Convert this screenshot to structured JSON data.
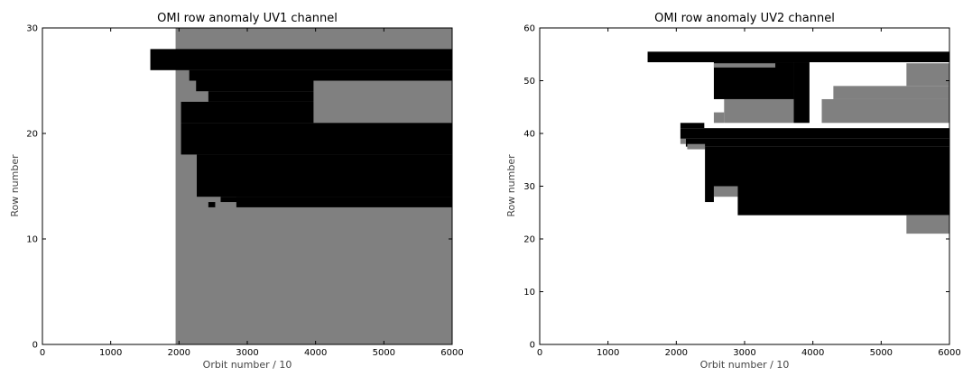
{
  "chart_data": [
    {
      "type": "heatmap",
      "title": "OMI row anomaly UV1 channel",
      "xlabel": "Orbit number / 10",
      "ylabel": "Row number",
      "xlim": [
        0,
        6000
      ],
      "ylim": [
        0,
        30
      ],
      "xticks": [
        0,
        1000,
        2000,
        3000,
        4000,
        5000,
        6000
      ],
      "yticks": [
        0,
        10,
        20,
        30
      ],
      "grid": false,
      "legend": "none",
      "colors": {
        "level_1": "#808080",
        "level_2": "#000000",
        "background": "#ffffff"
      },
      "regions": [
        {
          "level": 1,
          "x": [
            1950,
            6000
          ],
          "y": [
            0,
            30
          ]
        },
        {
          "level": 2,
          "x": [
            1580,
            6000
          ],
          "y": [
            26,
            28
          ]
        },
        {
          "level": 2,
          "x": [
            2150,
            6000
          ],
          "y": [
            25,
            26
          ]
        },
        {
          "level": 2,
          "x": [
            2250,
            6000
          ],
          "y": [
            24,
            25
          ]
        },
        {
          "level": 2,
          "x": [
            2430,
            6000
          ],
          "y": [
            23,
            24
          ]
        },
        {
          "level": 2,
          "x": [
            2030,
            6000
          ],
          "y": [
            21,
            23
          ]
        },
        {
          "level": 2,
          "x": [
            2030,
            6000
          ],
          "y": [
            18,
            21
          ]
        },
        {
          "level": 2,
          "x": [
            2260,
            6000
          ],
          "y": [
            14,
            18
          ]
        },
        {
          "level": 2,
          "x": [
            2610,
            6000
          ],
          "y": [
            13.5,
            14
          ]
        },
        {
          "level": 2,
          "x": [
            2430,
            2530
          ],
          "y": [
            13,
            13.5
          ]
        },
        {
          "level": 2,
          "x": [
            2840,
            6000
          ],
          "y": [
            13,
            14
          ]
        },
        {
          "level": 1,
          "x": [
            3970,
            6000
          ],
          "y": [
            21,
            25
          ]
        }
      ]
    },
    {
      "type": "heatmap",
      "title": "OMI row anomaly UV2 channel",
      "xlabel": "Orbit number / 10",
      "ylabel": "Row number",
      "xlim": [
        0,
        6000
      ],
      "ylim": [
        0,
        60
      ],
      "xticks": [
        0,
        1000,
        2000,
        3000,
        4000,
        5000,
        6000
      ],
      "yticks": [
        0,
        10,
        20,
        30,
        40,
        50,
        60
      ],
      "grid": false,
      "legend": "none",
      "colors": {
        "level_1": "#808080",
        "level_2": "#000000",
        "background": "#ffffff"
      },
      "regions": [
        {
          "level": 2,
          "x": [
            1580,
            6000
          ],
          "y": [
            53.5,
            55.5
          ]
        },
        {
          "level": 2,
          "x": [
            2550,
            3720
          ],
          "y": [
            46.5,
            53.5
          ]
        },
        {
          "level": 2,
          "x": [
            3720,
            3950
          ],
          "y": [
            42,
            53.5
          ]
        },
        {
          "level": 1,
          "x": [
            2550,
            3450
          ],
          "y": [
            52.5,
            53.3
          ]
        },
        {
          "level": 1,
          "x": [
            5370,
            6000
          ],
          "y": [
            49,
            53.3
          ]
        },
        {
          "level": 1,
          "x": [
            4300,
            6000
          ],
          "y": [
            46.5,
            49
          ]
        },
        {
          "level": 1,
          "x": [
            4130,
            6000
          ],
          "y": [
            42,
            46.5
          ]
        },
        {
          "level": 1,
          "x": [
            2700,
            3720
          ],
          "y": [
            42,
            46.5
          ]
        },
        {
          "level": 1,
          "x": [
            2550,
            2700
          ],
          "y": [
            42,
            44
          ]
        },
        {
          "level": 2,
          "x": [
            2060,
            2410
          ],
          "y": [
            41,
            42
          ]
        },
        {
          "level": 2,
          "x": [
            2060,
            6000
          ],
          "y": [
            39,
            41
          ]
        },
        {
          "level": 1,
          "x": [
            2060,
            2140
          ],
          "y": [
            38,
            39
          ]
        },
        {
          "level": 2,
          "x": [
            2140,
            6000
          ],
          "y": [
            37.5,
            39
          ]
        },
        {
          "level": 1,
          "x": [
            2160,
            2420
          ],
          "y": [
            37,
            38
          ]
        },
        {
          "level": 2,
          "x": [
            2420,
            6000
          ],
          "y": [
            30,
            37.5
          ]
        },
        {
          "level": 1,
          "x": [
            2550,
            2900
          ],
          "y": [
            28,
            30
          ]
        },
        {
          "level": 2,
          "x": [
            2420,
            2550
          ],
          "y": [
            27,
            30
          ]
        },
        {
          "level": 2,
          "x": [
            2900,
            6000
          ],
          "y": [
            24.5,
            30
          ]
        },
        {
          "level": 1,
          "x": [
            5370,
            6000
          ],
          "y": [
            21,
            24.5
          ]
        }
      ]
    }
  ]
}
